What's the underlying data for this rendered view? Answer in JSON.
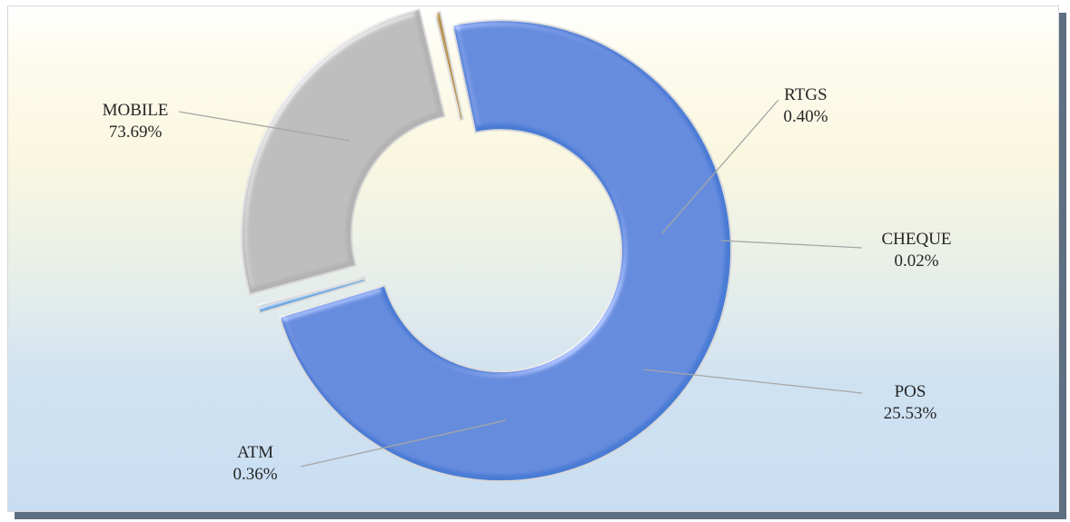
{
  "chart_data": {
    "type": "pie",
    "variant": "doughnut",
    "title": "",
    "legend": "none",
    "slices": [
      {
        "label": "MOBILE",
        "value": 73.69,
        "display": "73.69%",
        "color": "#4a7bd5"
      },
      {
        "label": "RTGS",
        "value": 0.4,
        "display": "0.40%",
        "color": "#6aa4dc"
      },
      {
        "label": "CHEQUE",
        "value": 0.02,
        "display": "0.02%",
        "color": "#8fb9e6"
      },
      {
        "label": "POS",
        "value": 25.53,
        "display": "25.53%",
        "color": "#b3b3b3"
      },
      {
        "label": "ATM",
        "value": 0.36,
        "display": "0.36%",
        "color": "#b08a3c"
      }
    ]
  }
}
